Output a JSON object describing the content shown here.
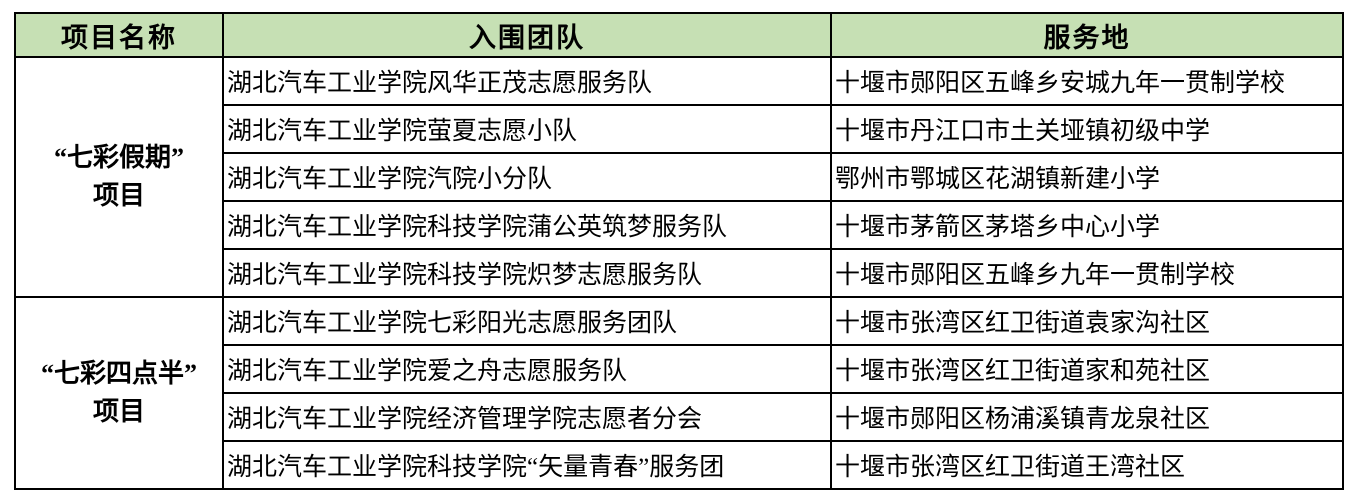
{
  "table": {
    "headers": {
      "project": "项目名称",
      "team": "入围团队",
      "location": "服务地"
    },
    "header_bg": "#c6e0b4",
    "border_color": "#000000",
    "groups": [
      {
        "name_line1": "“七彩假期”",
        "name_line2": "项目",
        "rows": [
          {
            "team": "湖北汽车工业学院风华正茂志愿服务队",
            "location": "十堰市郧阳区五峰乡安城九年一贯制学校"
          },
          {
            "team": "湖北汽车工业学院萤夏志愿小队",
            "location": "十堰市丹江口市土关垭镇初级中学"
          },
          {
            "team": "湖北汽车工业学院汽院小分队",
            "location": "鄂州市鄂城区花湖镇新建小学"
          },
          {
            "team": "湖北汽车工业学院科技学院蒲公英筑梦服务队",
            "location": "十堰市茅箭区茅塔乡中心小学"
          },
          {
            "team": "湖北汽车工业学院科技学院炽梦志愿服务队",
            "location": "十堰市郧阳区五峰乡九年一贯制学校"
          }
        ]
      },
      {
        "name_line1": "“七彩四点半”",
        "name_line2": "项目",
        "rows": [
          {
            "team": "湖北汽车工业学院七彩阳光志愿服务团队",
            "location": "十堰市张湾区红卫街道袁家沟社区"
          },
          {
            "team": "湖北汽车工业学院爱之舟志愿服务队",
            "location": "十堰市张湾区红卫街道家和苑社区"
          },
          {
            "team": "湖北汽车工业学院经济管理学院志愿者分会",
            "location": "十堰市郧阳区杨浦溪镇青龙泉社区"
          },
          {
            "team": "湖北汽车工业学院科技学院“矢量青春”服务团",
            "location": "十堰市张湾区红卫街道王湾社区"
          }
        ]
      }
    ]
  }
}
